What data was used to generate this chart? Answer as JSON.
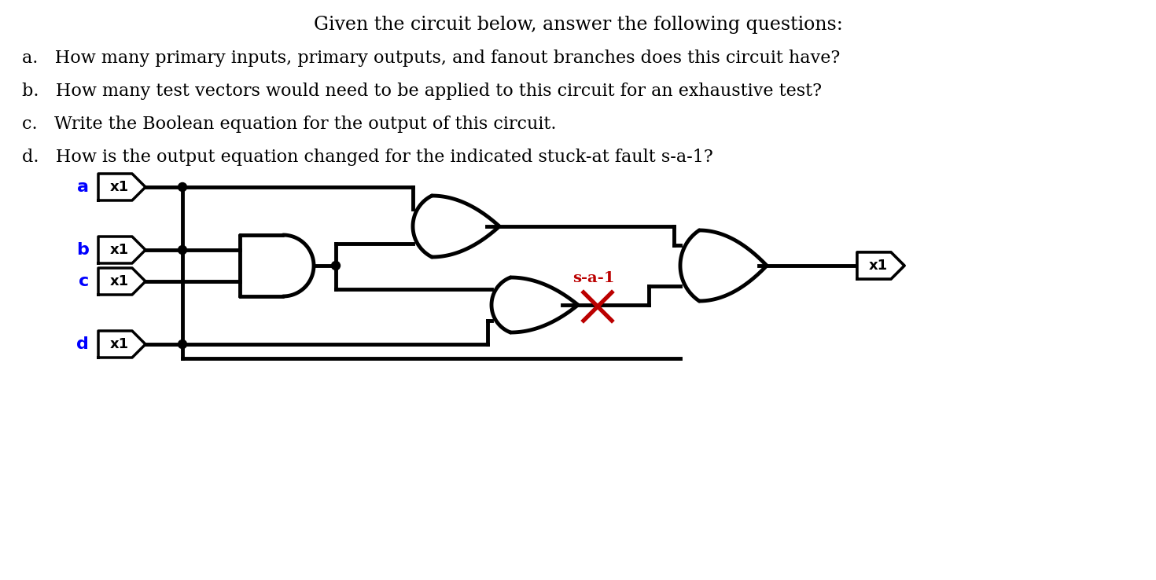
{
  "title_line1": "Given the circuit below, answer the following questions:",
  "questions": [
    "a.   How many primary inputs, primary outputs, and fanout branches does this circuit have?",
    "b.   How many test vectors would need to be applied to this circuit for an exhaustive test?",
    "c.   Write the Boolean equation for the output of this circuit.",
    "d.   How is the output equation changed for the indicated stuck-at fault s-a-1?"
  ],
  "sa1_label": "s-a-1",
  "sa1_color": "#bb0000",
  "bg_color": "#ffffff",
  "lw": 3.5,
  "font_size_title": 17,
  "font_size_q": 16
}
